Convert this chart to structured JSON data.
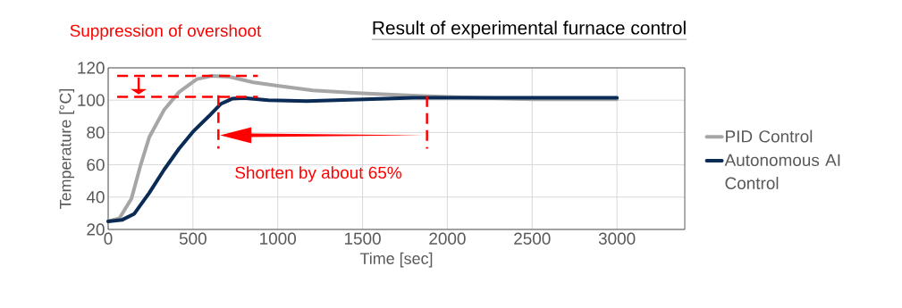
{
  "chart_data": {
    "type": "line",
    "title": "Result of experimental furnace control",
    "xlabel": "Time [sec]",
    "ylabel": "Temperature [°C]",
    "annotations": [
      "Suppression of overshoot",
      "Shorten by about 65%"
    ],
    "xlim": [
      0,
      3400
    ],
    "ylim": [
      20,
      120
    ],
    "xticks": [
      0,
      500,
      1000,
      1500,
      2000,
      2500,
      3000
    ],
    "yticks": [
      20,
      40,
      60,
      80,
      100,
      120
    ],
    "grid": true,
    "legend": "right",
    "line_style": "solid",
    "series": [
      {
        "name": "PID Control",
        "color": "#a6a6a6",
        "x": [
          0,
          67,
          137,
          189,
          242,
          330,
          418,
          523,
          611,
          716,
          856,
          996,
          1207,
          1470,
          1821,
          2000,
          2500,
          3000
        ],
        "values": [
          25,
          27,
          39,
          59,
          77,
          94,
          105,
          113,
          115,
          114.5,
          111,
          109,
          106,
          104.4,
          102.8,
          102,
          100.5,
          100.5
        ]
      },
      {
        "name": "Autonomous AI Control",
        "color": "#0b2b57",
        "x": [
          0,
          84,
          154,
          242,
          330,
          418,
          505,
          593,
          663,
          733,
          800,
          944,
          1172,
          1470,
          1800,
          3000
        ],
        "values": [
          25,
          26,
          29.7,
          42.6,
          57,
          70,
          81,
          90,
          97.6,
          101,
          101.3,
          100,
          99.4,
          100.4,
          101.5,
          101.5
        ]
      }
    ]
  }
}
